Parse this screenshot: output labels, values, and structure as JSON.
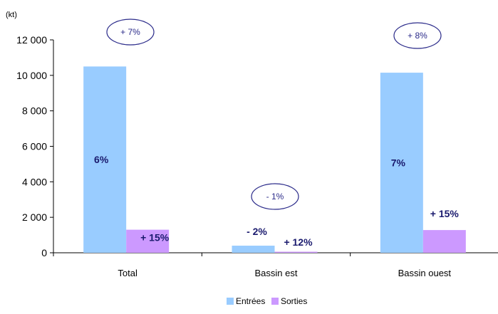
{
  "chart_data": {
    "type": "bar",
    "unit_label": "(kt)",
    "categories": [
      "Total",
      "Bassin est",
      "Bassin ouest"
    ],
    "ylim": [
      0,
      12000
    ],
    "yticks": [
      0,
      2000,
      4000,
      6000,
      8000,
      10000,
      12000
    ],
    "ytick_labels": [
      "0",
      "2 000",
      "4 000",
      "6 000",
      "8 000",
      "10 000",
      "12 000"
    ],
    "legend_position": "bottom",
    "series": [
      {
        "name": "Entrées",
        "color": "#99ccff",
        "values": [
          10500,
          400,
          10150
        ],
        "labels": [
          "6%",
          "- 2%",
          "7%"
        ]
      },
      {
        "name": "Sorties",
        "color": "#cc99ff",
        "values": [
          1300,
          60,
          1280
        ],
        "labels": [
          "+ 15%",
          "+ 12%",
          "+ 15%"
        ]
      }
    ],
    "annotations": [
      "+ 7%",
      "- 1%",
      "+ 8%"
    ]
  }
}
